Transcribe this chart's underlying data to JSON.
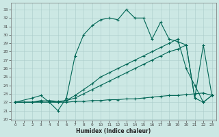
{
  "xlabel": "Humidex (Indice chaleur)",
  "xlim": [
    -0.5,
    23.5
  ],
  "ylim": [
    19.8,
    33.8
  ],
  "bg_color": "#cce8e4",
  "grid_color": "#aaccca",
  "line_color": "#006655",
  "xticks": [
    0,
    1,
    2,
    3,
    4,
    5,
    6,
    7,
    8,
    9,
    10,
    11,
    12,
    13,
    14,
    15,
    16,
    17,
    18,
    19,
    20,
    21,
    22,
    23
  ],
  "yticks": [
    20,
    21,
    22,
    23,
    24,
    25,
    26,
    27,
    28,
    29,
    30,
    31,
    32,
    33
  ],
  "line1": {
    "x": [
      0,
      1,
      2,
      3,
      4,
      5,
      6,
      7,
      8,
      9,
      10,
      11,
      12,
      13,
      14,
      15,
      16,
      17,
      18,
      19,
      20,
      21,
      22,
      23
    ],
    "y": [
      22.0,
      22.0,
      22.0,
      22.0,
      22.0,
      22.0,
      22.0,
      22.1,
      22.1,
      22.2,
      22.2,
      22.3,
      22.3,
      22.4,
      22.4,
      22.5,
      22.6,
      22.7,
      22.8,
      22.8,
      22.9,
      23.0,
      23.1,
      22.8
    ]
  },
  "line2": {
    "x": [
      0,
      2,
      3,
      4,
      5,
      6,
      7,
      8,
      9,
      10,
      11,
      12,
      13,
      14,
      15,
      16,
      17,
      18,
      19,
      20,
      21,
      22,
      23
    ],
    "y": [
      22.0,
      22.0,
      22.1,
      22.2,
      22.1,
      22.2,
      22.5,
      23.0,
      23.5,
      24.0,
      24.5,
      25.0,
      25.5,
      26.0,
      26.5,
      27.0,
      27.5,
      28.0,
      28.3,
      28.8,
      22.5,
      22.0,
      22.8
    ]
  },
  "line3": {
    "x": [
      0,
      2,
      3,
      4,
      5,
      6,
      7,
      8,
      9,
      10,
      11,
      12,
      13,
      14,
      15,
      16,
      17,
      18,
      19,
      20,
      21,
      22,
      23
    ],
    "y": [
      22.0,
      22.0,
      22.2,
      22.1,
      22.0,
      22.2,
      22.8,
      23.5,
      24.2,
      25.0,
      25.5,
      26.0,
      26.5,
      27.0,
      27.5,
      28.0,
      28.5,
      29.0,
      29.5,
      26.0,
      24.0,
      22.0,
      22.8
    ]
  },
  "line4": {
    "x": [
      0,
      2,
      3,
      4,
      5,
      6,
      7,
      8,
      9,
      10,
      11,
      12,
      13,
      14,
      15,
      16,
      17,
      18,
      19,
      20,
      21,
      22,
      23
    ],
    "y": [
      22.0,
      22.5,
      22.8,
      22.0,
      21.0,
      22.5,
      27.5,
      30.0,
      31.1,
      31.8,
      32.0,
      31.8,
      33.0,
      32.0,
      32.0,
      29.5,
      31.5,
      29.5,
      29.2,
      28.8,
      22.5,
      28.8,
      22.8
    ]
  }
}
